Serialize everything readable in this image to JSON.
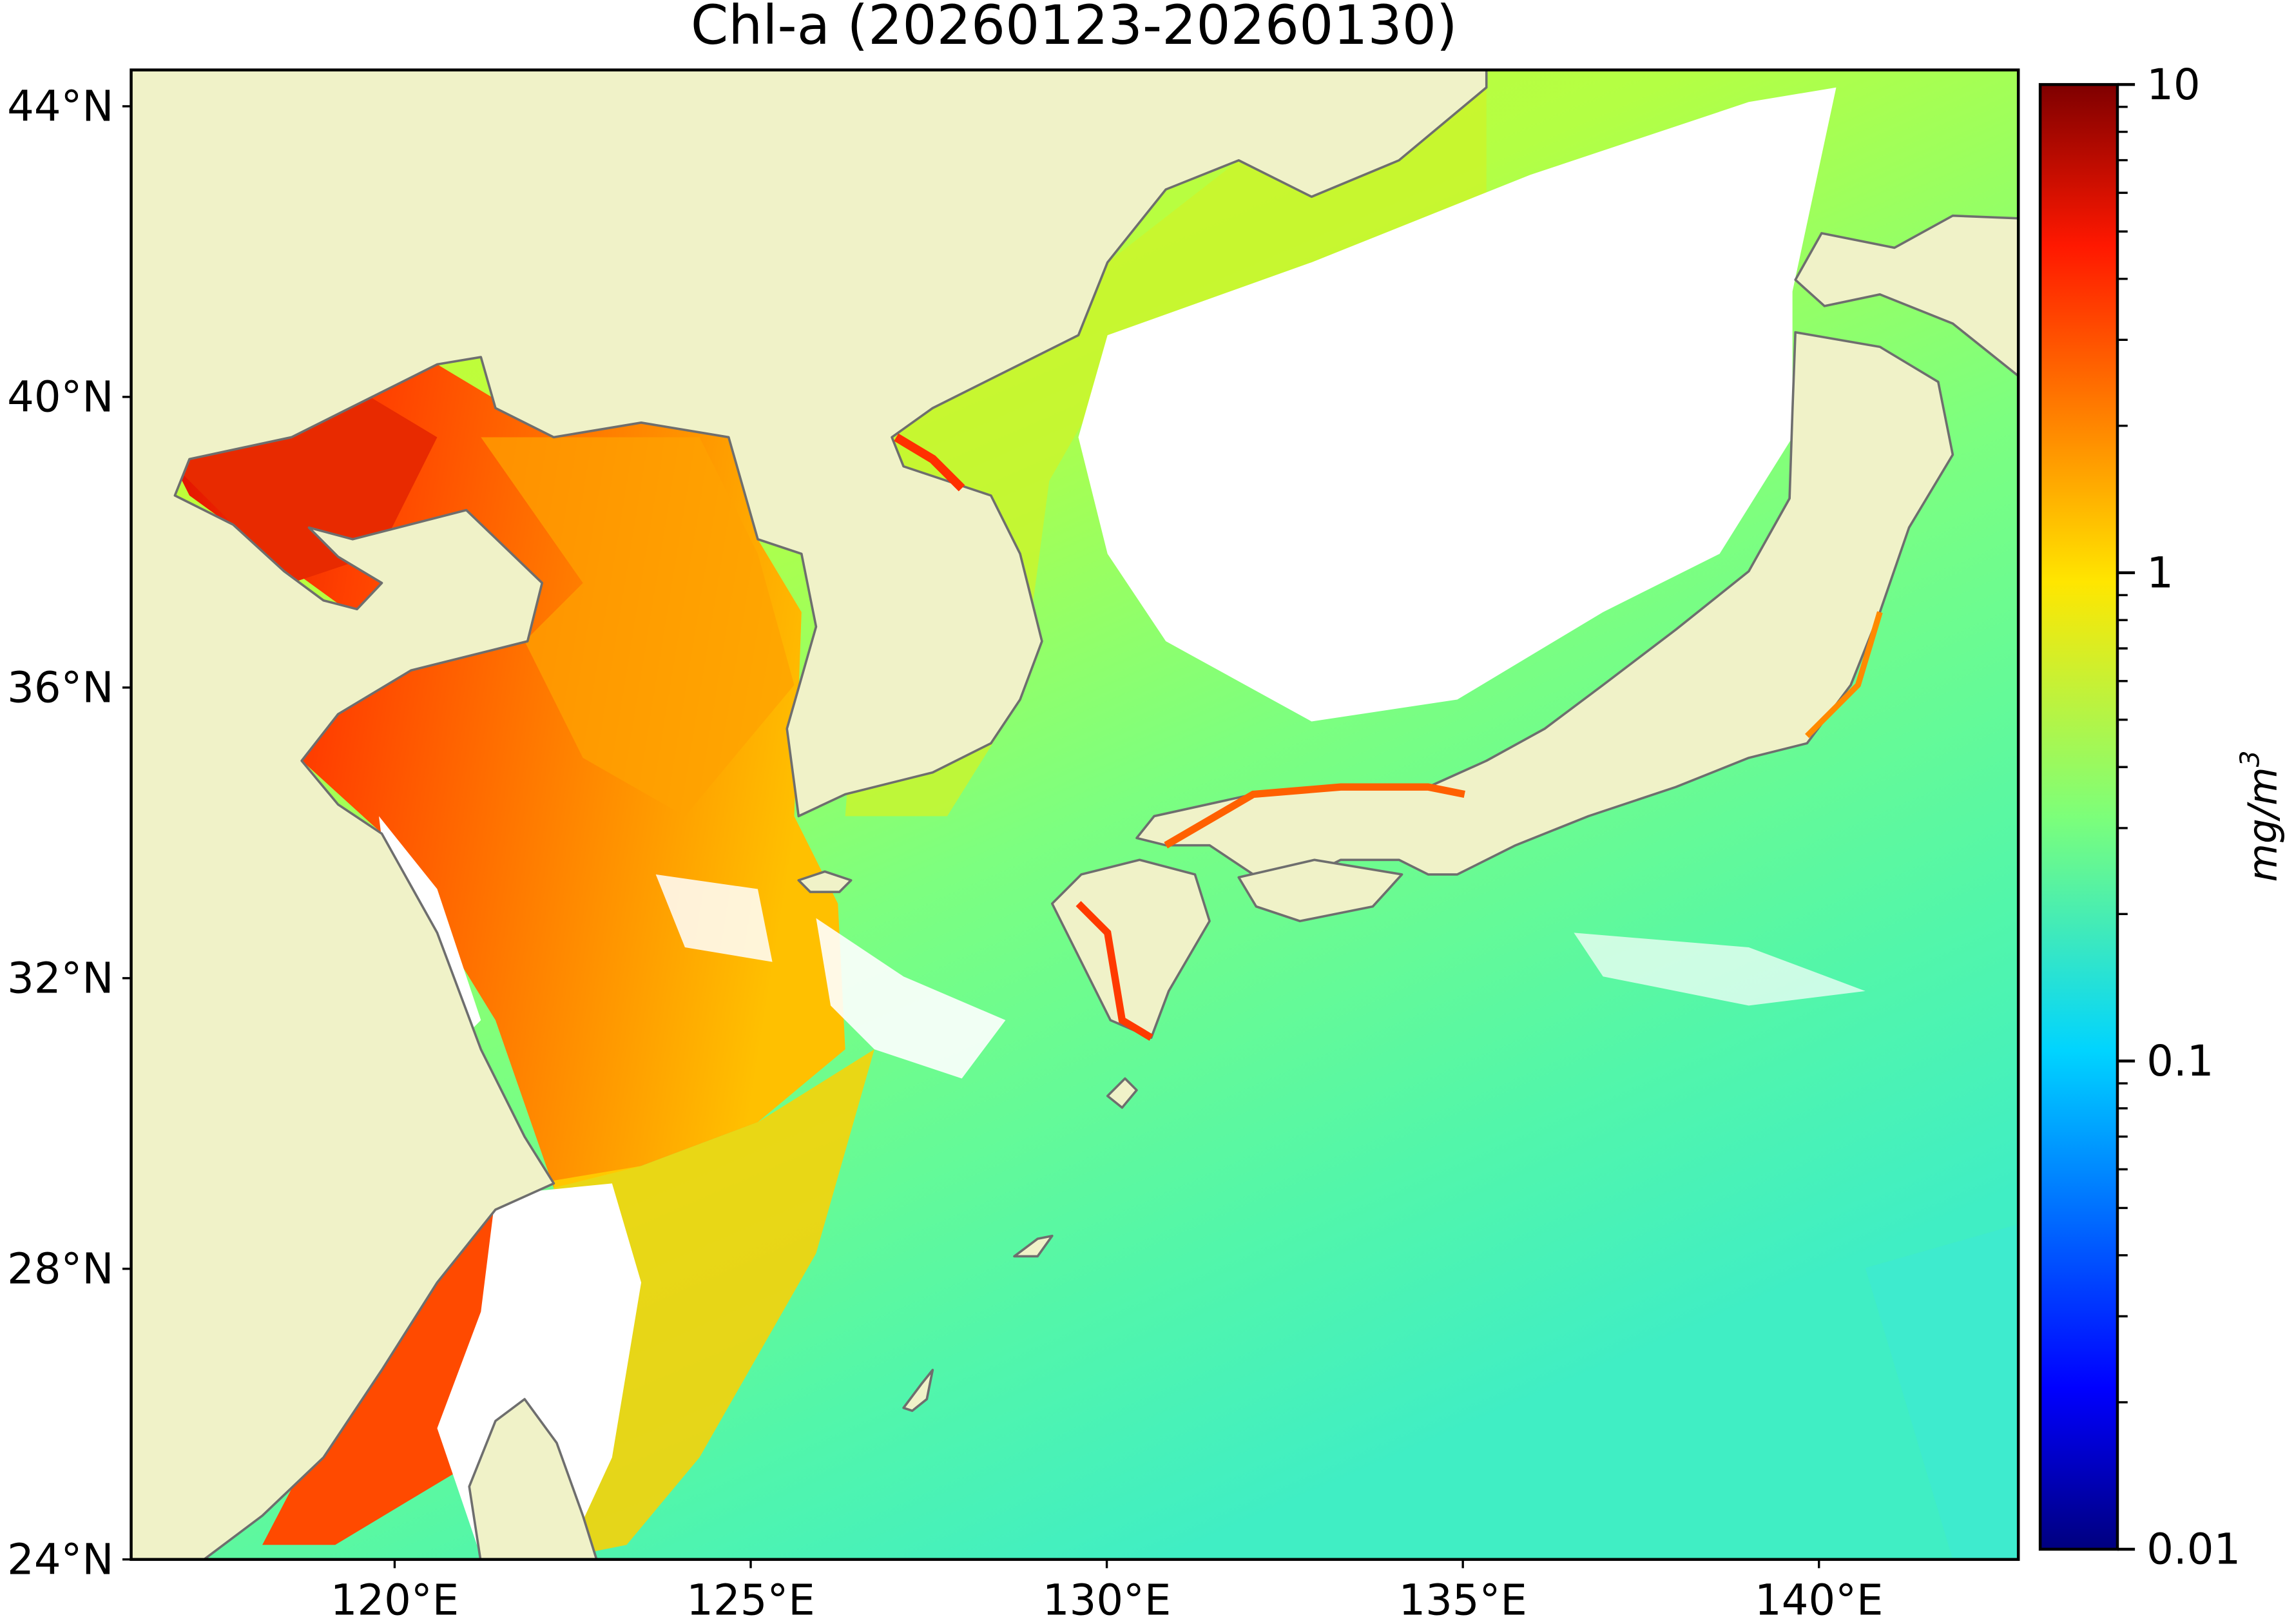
{
  "title": "Chl-a (20260123-20260130)",
  "map": {
    "lon_range": [
      116.3,
      142.8
    ],
    "lat_range": [
      24,
      44.5
    ],
    "lon_ticks": [
      {
        "value": 120,
        "label": "120°E"
      },
      {
        "value": 125,
        "label": "125°E"
      },
      {
        "value": 130,
        "label": "130°E"
      },
      {
        "value": 135,
        "label": "135°E"
      },
      {
        "value": 140,
        "label": "140°E"
      }
    ],
    "lat_ticks": [
      {
        "value": 44,
        "label": "44°N"
      },
      {
        "value": 40,
        "label": "40°N"
      },
      {
        "value": 36,
        "label": "36°N"
      },
      {
        "value": 32,
        "label": "32°N"
      },
      {
        "value": 28,
        "label": "28°N"
      },
      {
        "value": 24,
        "label": "24°N"
      }
    ],
    "colors": {
      "land": "#f0f2c8",
      "coastline": "#6e6e6e",
      "no_data": "#ffffff"
    }
  },
  "colorbar": {
    "colormap": "jet",
    "scale": "log",
    "range": [
      0.01,
      10
    ],
    "ticks": [
      {
        "value": 10,
        "label": "10"
      },
      {
        "value": 1,
        "label": "1"
      },
      {
        "value": 0.1,
        "label": "0.1"
      },
      {
        "value": 0.01,
        "label": "0.01"
      }
    ],
    "unit_label": "mg/m",
    "unit_exponent": "3"
  }
}
